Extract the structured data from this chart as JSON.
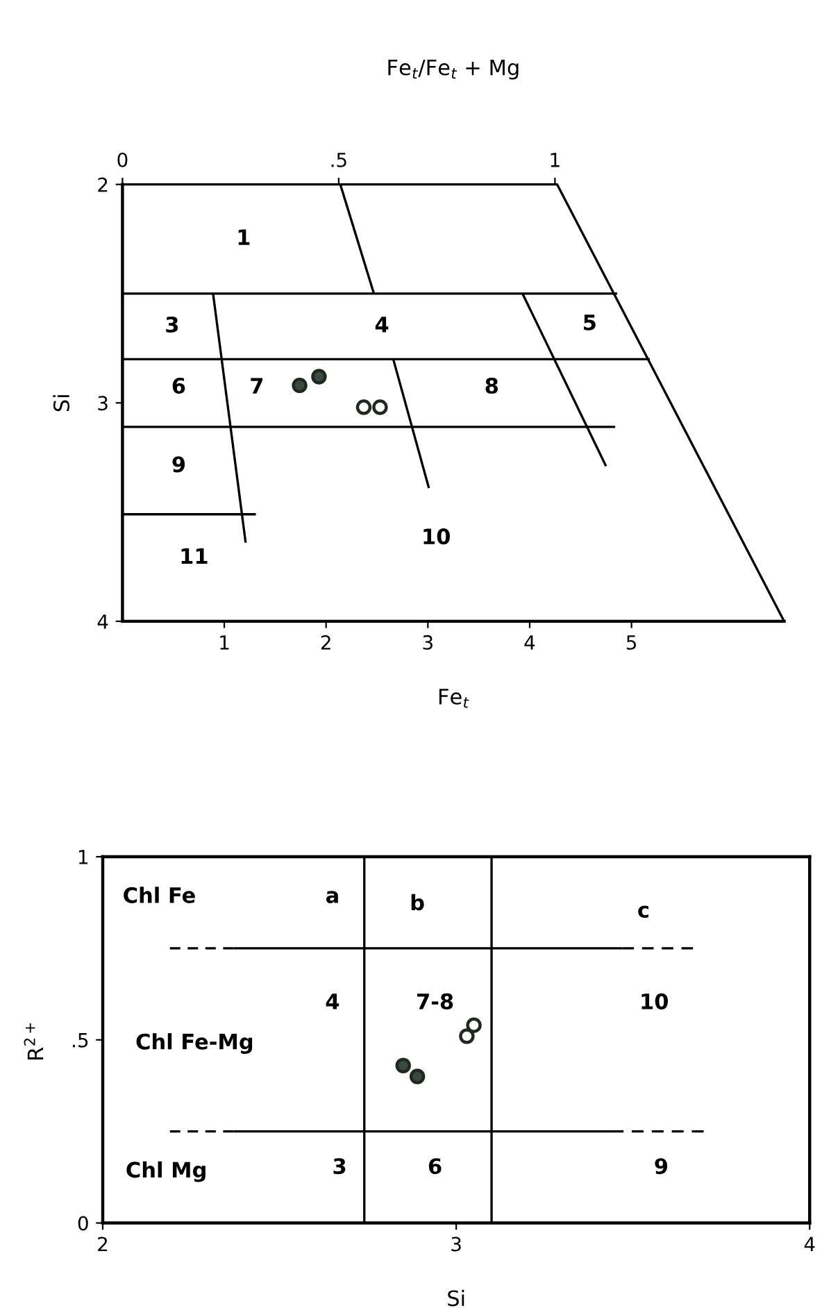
{
  "chart_data": [
    {
      "type": "scatter",
      "xlabel": "Fe$_{t}$",
      "ylabel": "Si",
      "x2label": "Fe$_{t}$/Fe$_{t}$ + Mg",
      "xlim": [
        0,
        6.5
      ],
      "xticks": [
        1,
        2,
        3,
        4,
        5
      ],
      "ylim": [
        4,
        2
      ],
      "yticks": [
        2,
        3,
        4
      ],
      "x2lim": [
        0,
        1.53
      ],
      "x2ticks": [
        0,
        {
          "value": 0.5,
          "label": ".5"
        },
        1
      ],
      "grid": false,
      "series": [
        {
          "type": "line",
          "color": "#000000",
          "line_style": "solid",
          "x": [
            0,
            4.27,
            6.5
          ],
          "values": [
            2,
            2,
            4
          ]
        },
        {
          "type": "line",
          "color": "#000000",
          "line_style": "solid",
          "x": [
            0,
            4.86
          ],
          "values": [
            2.5,
            2.5
          ]
        },
        {
          "type": "line",
          "color": "#000000",
          "line_style": "solid",
          "x": [
            0,
            5.18
          ],
          "values": [
            2.8,
            2.8
          ]
        },
        {
          "type": "line",
          "color": "#000000",
          "line_style": "solid",
          "x": [
            0,
            4.84
          ],
          "values": [
            3.11,
            3.11
          ]
        },
        {
          "type": "line",
          "color": "#000000",
          "line_style": "solid",
          "x": [
            0,
            1.31
          ],
          "values": [
            3.51,
            3.51
          ]
        },
        {
          "type": "line",
          "color": "#000000",
          "line_style": "solid",
          "x": [
            2.14,
            2.47
          ],
          "values": [
            2,
            2.5
          ]
        },
        {
          "type": "line",
          "color": "#000000",
          "line_style": "solid",
          "x": [
            0.89,
            1.21
          ],
          "values": [
            2.5,
            3.64
          ]
        },
        {
          "type": "line",
          "color": "#000000",
          "line_style": "solid",
          "x": [
            2.66,
            3.01
          ],
          "values": [
            2.8,
            3.39
          ]
        },
        {
          "type": "line",
          "color": "#000000",
          "line_style": "solid",
          "x": [
            3.93,
            4.75
          ],
          "values": [
            2.5,
            3.29
          ]
        },
        {
          "marker": "circle",
          "color": "#3b4a3e",
          "x": [
            1.74,
            1.93
          ],
          "values": [
            2.92,
            2.88
          ]
        },
        {
          "marker": "circle",
          "color": "#ffffff",
          "x": [
            2.37,
            2.53
          ],
          "values": [
            3.02,
            3.02
          ]
        }
      ],
      "annotations": [
        "1",
        "3",
        "4",
        "5",
        "6",
        "7",
        "8",
        "9",
        "10",
        "11"
      ]
    },
    {
      "type": "scatter",
      "xlabel": "Si",
      "ylabel": "R$^{2+}$",
      "xlim": [
        2,
        4
      ],
      "xticks": [
        2,
        3,
        4
      ],
      "ylim": [
        0,
        1
      ],
      "yticks": [
        0,
        {
          "value": 0.5,
          "label": ".5"
        },
        1
      ],
      "grid": false,
      "series": [
        {
          "type": "line",
          "color": "#000000",
          "line_style": "solid",
          "x": [
            2.74,
            2.74
          ],
          "values": [
            0,
            1
          ]
        },
        {
          "type": "line",
          "color": "#000000",
          "line_style": "solid",
          "x": [
            3.1,
            3.1
          ],
          "values": [
            0,
            1
          ]
        },
        {
          "type": "line",
          "color": "#000000",
          "line_style": "dashed",
          "x": [
            2.19,
            2.37
          ],
          "values": [
            0.75,
            0.75
          ]
        },
        {
          "type": "line",
          "color": "#000000",
          "line_style": "solid",
          "x": [
            2.37,
            3.47
          ],
          "values": [
            0.75,
            0.75
          ]
        },
        {
          "type": "line",
          "color": "#000000",
          "line_style": "dashed",
          "x": [
            3.47,
            3.67
          ],
          "values": [
            0.75,
            0.75
          ]
        },
        {
          "type": "line",
          "color": "#000000",
          "line_style": "dashed",
          "x": [
            2.19,
            2.37
          ],
          "values": [
            0.25,
            0.25
          ]
        },
        {
          "type": "line",
          "color": "#000000",
          "line_style": "solid",
          "x": [
            2.37,
            3.44
          ],
          "values": [
            0.25,
            0.25
          ]
        },
        {
          "type": "line",
          "color": "#000000",
          "line_style": "dashed",
          "x": [
            3.44,
            3.7
          ],
          "values": [
            0.25,
            0.25
          ]
        },
        {
          "marker": "circle",
          "color": "#3b4a3e",
          "x": [
            2.85,
            2.89
          ],
          "values": [
            0.43,
            0.4
          ]
        },
        {
          "marker": "circle",
          "color": "#ffffff",
          "x": [
            3.03,
            3.05
          ],
          "values": [
            0.51,
            0.54
          ]
        }
      ],
      "annotations": [
        "Chl Fe",
        "Chl Fe-Mg",
        "Chl Mg",
        "a",
        "b",
        "c",
        "4",
        "7-8",
        "10",
        "3",
        "6",
        "9"
      ]
    }
  ]
}
